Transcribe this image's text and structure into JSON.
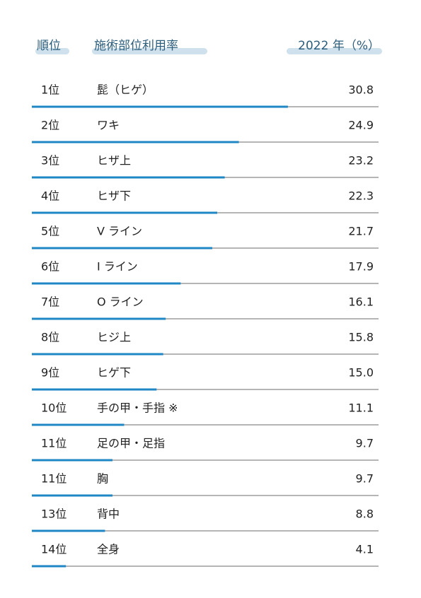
{
  "chart_data": {
    "type": "bar",
    "column_headers": [
      "順位",
      "施術部位利用率",
      "2022 年（%）"
    ],
    "ranks": [
      "1位",
      "2位",
      "3位",
      "4位",
      "5位",
      "6位",
      "7位",
      "8位",
      "9位",
      "10位",
      "11位",
      "11位",
      "13位",
      "14位"
    ],
    "categories": [
      "髭（ヒゲ）",
      "ワキ",
      "ヒザ上",
      "ヒザ下",
      "V ライン",
      "I ライン",
      "O ライン",
      "ヒジ上",
      "ヒゲ下",
      "手の甲・手指 ※",
      "足の甲・足指",
      "胸",
      "背中",
      "全身"
    ],
    "values": [
      30.8,
      24.9,
      23.2,
      22.3,
      21.7,
      17.9,
      16.1,
      15.8,
      15.0,
      11.1,
      9.7,
      9.7,
      8.8,
      4.1
    ],
    "value_labels": [
      "30.8",
      "24.9",
      "23.2",
      "22.3",
      "21.7",
      "17.9",
      "16.1",
      "15.8",
      "15.0",
      "11.1",
      "9.7",
      "9.7",
      "8.8",
      "4.1"
    ],
    "color": "#1f87c6"
  }
}
